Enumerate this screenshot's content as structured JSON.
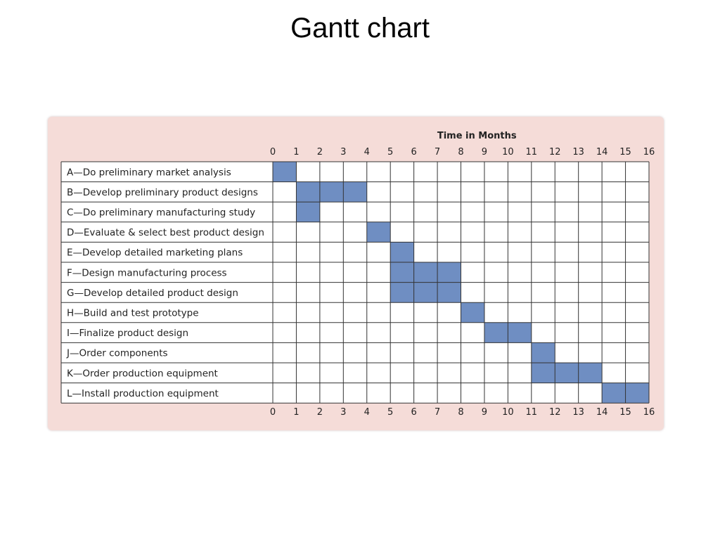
{
  "slide": {
    "title": "Gantt chart"
  },
  "chart_data": {
    "type": "bar",
    "subtype": "gantt",
    "title": "",
    "xlabel": "Time in Months",
    "ylabel": "",
    "xlim": [
      0,
      16
    ],
    "x_ticks": [
      0,
      1,
      2,
      3,
      4,
      5,
      6,
      7,
      8,
      9,
      10,
      11,
      12,
      13,
      14,
      15,
      16
    ],
    "grid": true,
    "bar_color": "#6f8ec2",
    "panel_color": "#f5dcd8",
    "tasks": [
      {
        "label": "A—Do preliminary market analysis",
        "start": 0,
        "end": 1
      },
      {
        "label": "B—Develop preliminary product designs",
        "start": 1,
        "end": 4
      },
      {
        "label": "C—Do preliminary manufacturing study",
        "start": 1,
        "end": 2
      },
      {
        "label": "D—Evaluate & select best product design",
        "start": 4,
        "end": 5
      },
      {
        "label": "E—Develop detailed marketing plans",
        "start": 5,
        "end": 6
      },
      {
        "label": "F—Design manufacturing process",
        "start": 5,
        "end": 8
      },
      {
        "label": "G—Develop detailed product design",
        "start": 5,
        "end": 8
      },
      {
        "label": "H—Build and test prototype",
        "start": 8,
        "end": 9
      },
      {
        "label": "I—Finalize product design",
        "start": 9,
        "end": 11
      },
      {
        "label": "J—Order components",
        "start": 11,
        "end": 12
      },
      {
        "label": "K—Order production equipment",
        "start": 11,
        "end": 14
      },
      {
        "label": "L—Install production equipment",
        "start": 14,
        "end": 16
      }
    ]
  }
}
